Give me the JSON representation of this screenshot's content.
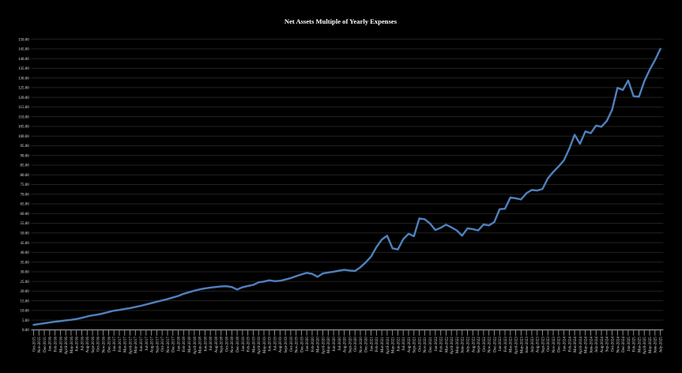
{
  "title": "Net Assets Multiple of Yearly Expenses",
  "chart_data": {
    "type": "line",
    "title": "Net Assets Multiple of Yearly Expenses",
    "xlabel": "",
    "ylabel": "",
    "legend": "none",
    "grid": "horizontal",
    "ylim": [
      0,
      150
    ],
    "ytick_step": 5,
    "ytick_decimals": 2,
    "categories": [
      "Oct-2015",
      "Nov-2015",
      "Dec-2015",
      "Jan-2016",
      "Feb-2016",
      "Mar-2016",
      "April-2016",
      "May-2016",
      "Jun-2016",
      "Jul-2016",
      "Aug-2016",
      "Sept-2016",
      "Oct-2016",
      "Nov-2016",
      "Dec-2016",
      "Jan-2017",
      "Feb-2017",
      "Mar-2017",
      "April-2017",
      "May-2017",
      "Jun-2017",
      "Jul-2017",
      "Aug-2017",
      "Sept-2017",
      "Oct-2017",
      "Nov-2017",
      "Dec-2017",
      "Jan-2018",
      "Feb-2018",
      "Mar-2018",
      "April-2018",
      "May-2018",
      "Jun-2018",
      "Jul-2018",
      "Aug-2018",
      "Sept-2018",
      "Oct-2018",
      "Nov-2018",
      "Dec-2018",
      "Jan-2019",
      "Feb-2019",
      "Mar-2019",
      "April-2019",
      "May-2019",
      "Jun-2019",
      "Jul-2019",
      "Aug-2019",
      "Sept-2019",
      "Oct-2019",
      "Nov-2019",
      "Dec-2019",
      "Jan-2020",
      "Feb-2020",
      "Mar-2020",
      "April-2020",
      "May-2020",
      "Jun-2020",
      "Jul-2020",
      "Aug-2020",
      "Sept-2020",
      "Oct-2020",
      "Nov-2020",
      "Dec-2020",
      "Jan-2021",
      "Feb-2021",
      "Mar-2021",
      "April-2021",
      "May-2021",
      "Jun-2021",
      "Jul-2021",
      "Aug-2021",
      "Sept-2021",
      "Oct-2021",
      "Nov-2021",
      "Dec-2021",
      "Jan-2022",
      "Feb-2022",
      "Mar-2022",
      "April-2022",
      "May-2022",
      "June-2022",
      "July-2022",
      "Aug-2022",
      "Sept-2022",
      "Oct-2022",
      "Nov-2022",
      "Dec-2022",
      "Jan-2023",
      "Feb-2023",
      "Mar-2023",
      "April-2023",
      "May-2023",
      "June-2023",
      "July-2023",
      "Aug-2023",
      "Sept-2023",
      "Oct-2023",
      "Nov-2023",
      "Dec-2023",
      "Jan-2024",
      "Feb-2024",
      "Mar-2024",
      "April-2024",
      "May-2024",
      "June-2024",
      "July-2024",
      "Aug-2024",
      "Sep-2024",
      "Oct-2024",
      "Nov-2024",
      "Dec-2024",
      "Jan-2025",
      "Feb-2025",
      "Mar-2025",
      "April-2025",
      "May-2025",
      "June-2025",
      "July-2025"
    ],
    "values": [
      2.6,
      3.0,
      3.4,
      3.8,
      4.2,
      4.5,
      4.9,
      5.2,
      5.6,
      6.2,
      6.9,
      7.5,
      7.9,
      8.5,
      9.2,
      9.9,
      10.3,
      10.8,
      11.2,
      11.8,
      12.4,
      13.1,
      13.8,
      14.5,
      15.2,
      15.9,
      16.7,
      17.5,
      18.6,
      19.4,
      20.2,
      20.9,
      21.4,
      21.8,
      22.1,
      22.4,
      22.5,
      22.1,
      20.8,
      22.0,
      22.6,
      23.2,
      24.5,
      24.9,
      25.6,
      25.1,
      25.3,
      26.0,
      26.7,
      27.7,
      28.6,
      29.4,
      28.9,
      27.4,
      29.1,
      29.6,
      30.0,
      30.5,
      31.0,
      30.6,
      30.4,
      32.3,
      34.8,
      37.8,
      42.7,
      46.6,
      48.6,
      42.1,
      41.5,
      46.8,
      49.6,
      48.3,
      57.5,
      57.1,
      54.9,
      51.5,
      52.7,
      54.3,
      52.9,
      51.3,
      48.6,
      52.4,
      52.0,
      51.3,
      54.4,
      53.9,
      55.6,
      62.3,
      62.5,
      68.3,
      67.9,
      67.3,
      70.5,
      72.2,
      71.9,
      72.7,
      78.2,
      81.5,
      84.3,
      87.5,
      93.5,
      100.7,
      96.0,
      102.4,
      101.5,
      105.4,
      104.8,
      107.8,
      113.6,
      124.9,
      123.8,
      128.7,
      120.6,
      120.3,
      128.2,
      134.2,
      139.2,
      145.0
    ],
    "colors": {
      "background": "#000000",
      "series_line": "#4f81bd",
      "gridline": "#222222",
      "axis": "#9c9c9c",
      "tick_label": "#e2e2e2",
      "title": "#ffffff"
    }
  }
}
